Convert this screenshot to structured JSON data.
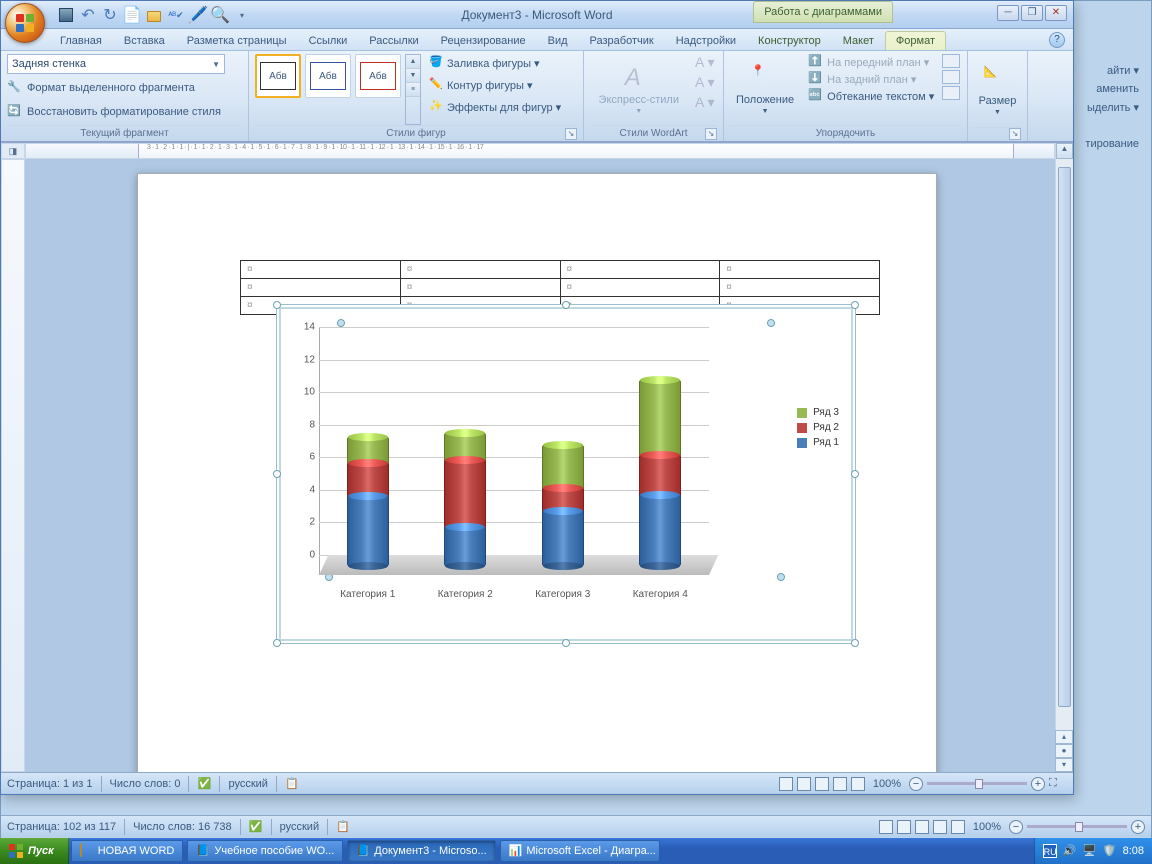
{
  "outer": {
    "status_page": "Страница: 102 из 117",
    "status_words": "Число слов: 16 738",
    "status_lang": "русский",
    "zoom": "100%",
    "sidebar_items": [
      "айти ▾",
      "аменить",
      "ыделить ▾",
      "тирование"
    ]
  },
  "window": {
    "title": "Документ3 - Microsoft Word",
    "context_title": "Работа с диаграммами",
    "tabs": [
      "Главная",
      "Вставка",
      "Разметка страницы",
      "Ссылки",
      "Рассылки",
      "Рецензирование",
      "Вид",
      "Разработчик",
      "Надстройки"
    ],
    "context_tabs": [
      "Конструктор",
      "Макет",
      "Формат"
    ],
    "active_tab": "Формат"
  },
  "ribbon": {
    "group1": {
      "label": "Текущий фрагмент",
      "dropdown": "Задняя стенка",
      "btn1": "Формат выделенного фрагмента",
      "btn2": "Восстановить форматирование стиля"
    },
    "group2": {
      "label": "Стили фигур",
      "sample": "Абв",
      "fill": "Заливка фигуры ▾",
      "outline": "Контур фигуры ▾",
      "effects": "Эффекты для фигур ▾"
    },
    "group3": {
      "label": "Стили WordArt",
      "express": "Экспресс-стили"
    },
    "group4": {
      "label": "Упорядочить",
      "position": "Положение",
      "front": "На передний план ▾",
      "back": "На задний план ▾",
      "wrap": "Обтекание текстом ▾"
    },
    "group5": {
      "label": "Размер"
    }
  },
  "chart": {
    "type": "stacked-cylinder-3d",
    "categories": [
      "Категория 1",
      "Категория 2",
      "Категория 3",
      "Категория 4"
    ],
    "series": [
      {
        "name": "Ряд 1",
        "color": "#4a7ebb",
        "values": [
          4.4,
          2.5,
          3.5,
          4.5
        ]
      },
      {
        "name": "Ряд 2",
        "color": "#be4b48",
        "values": [
          2.4,
          4.5,
          1.8,
          2.8
        ]
      },
      {
        "name": "Ряд 3",
        "color": "#98b954",
        "values": [
          2.0,
          2.0,
          3.0,
          5.0
        ]
      }
    ],
    "legend": [
      "Ряд 3",
      "Ряд 2",
      "Ряд 1"
    ],
    "legend_colors": [
      "#98b954",
      "#be4b48",
      "#4a7ebb"
    ],
    "ylim": [
      0,
      14
    ],
    "ytick_step": 2,
    "background": "#ffffff",
    "grid_color": "#cccccc"
  },
  "status": {
    "page": "Страница: 1 из 1",
    "words": "Число слов: 0",
    "lang": "русский",
    "zoom": "100%"
  },
  "taskbar": {
    "start": "Пуск",
    "items": [
      {
        "label": "НОВАЯ WORD",
        "type": "folder"
      },
      {
        "label": "Учебное пособие WO...",
        "type": "doc"
      },
      {
        "label": "Документ3 - Microso...",
        "type": "doc",
        "active": true
      },
      {
        "label": "Microsoft Excel - Диагра...",
        "type": "excel"
      }
    ],
    "clock": "8:08",
    "lang_ind": "RU"
  }
}
